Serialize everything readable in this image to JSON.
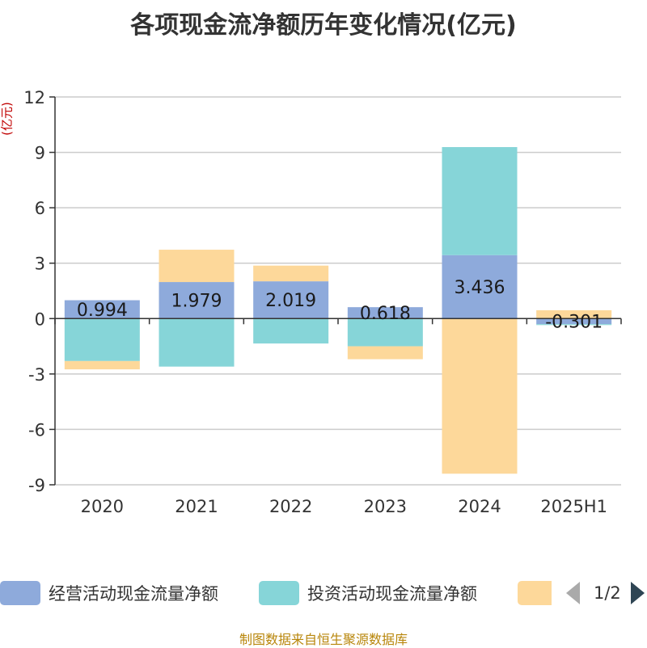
{
  "chart_data": {
    "type": "bar",
    "stacked": true,
    "title": "各项现金流净额历年变化情况(亿元)",
    "ylabel": "(亿元)",
    "xlabel": "",
    "categories": [
      "2020",
      "2021",
      "2022",
      "2023",
      "2024",
      "2025H1"
    ],
    "ylim": [
      -9,
      12
    ],
    "yticks": [
      -9,
      -6,
      -3,
      0,
      3,
      6,
      9,
      12
    ],
    "grid": true,
    "legend_position": "bottom",
    "series": [
      {
        "name": "经营活动现金流量净额",
        "color": "#8eaadb",
        "values": [
          0.994,
          1.979,
          2.019,
          0.618,
          3.436,
          -0.301
        ],
        "labels": [
          "0.994",
          "1.979",
          "2.019",
          "0.618",
          "3.436",
          "-0.301"
        ]
      },
      {
        "name": "投资活动现金流量净额",
        "color": "#86d5d8",
        "values": [
          -2.3,
          -2.6,
          -1.35,
          -1.5,
          5.85,
          -0.05
        ]
      },
      {
        "name": "",
        "color": "#fdd89a",
        "values": [
          -0.45,
          1.75,
          0.85,
          -0.7,
          -8.4,
          0.45
        ]
      }
    ]
  },
  "legend": {
    "items": [
      {
        "label": "经营活动现金流量净额",
        "color": "#8eaadb"
      },
      {
        "label": "投资活动现金流量净额",
        "color": "#86d5d8"
      },
      {
        "label": "",
        "color": "#fdd89a"
      }
    ],
    "page_text": "1/2"
  },
  "source_text": "制图数据来自恒生聚源数据库"
}
